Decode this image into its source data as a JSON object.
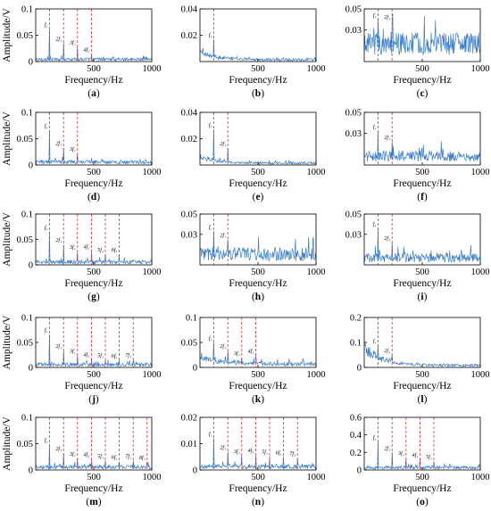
{
  "chart_data": [
    {
      "id": "a",
      "type": "line",
      "caption": "a",
      "xlabel": "Frequency/Hz",
      "ylabel": "Amplitude/V",
      "xlim": [
        0,
        1000
      ],
      "ylim": [
        0,
        0.1
      ],
      "yticks": [
        0,
        0.05,
        0.1
      ],
      "ytick_labels": [
        "0",
        "0.05",
        "0.1"
      ],
      "xticks": [
        500,
        1000
      ],
      "xtick_labels": [
        "500",
        "1000"
      ],
      "line_color": "#3a7dc9",
      "marker_color": "#e0303a",
      "markers": [
        120,
        240,
        360,
        480
      ],
      "marker_labels": [
        "f₁",
        "2f₁",
        "3f₁",
        "4f₁"
      ],
      "noise": 0.006,
      "peak_values": [
        0.062,
        0.035,
        0.028,
        0.014
      ],
      "trend": [
        0,
        0
      ]
    },
    {
      "id": "b",
      "type": "line",
      "caption": "b",
      "xlabel": "Frequency/Hz",
      "ylabel": "",
      "xlim": [
        0,
        1000
      ],
      "ylim": [
        0,
        0.04
      ],
      "yticks": [
        0.02,
        0.04
      ],
      "ytick_labels": [
        "0.02",
        "0.04"
      ],
      "xticks": [
        500,
        1000
      ],
      "xtick_labels": [
        "500",
        "1000"
      ],
      "line_color": "#3a7dc9",
      "marker_color": "#e0303a",
      "markers": [
        120
      ],
      "marker_labels": [
        "f₁"
      ],
      "noise": 0.002,
      "peak_values": [
        0.017
      ],
      "trend": [
        0.007,
        120
      ]
    },
    {
      "id": "c",
      "type": "line",
      "caption": "c",
      "xlabel": "Frequency/Hz",
      "ylabel": "",
      "xlim": [
        0,
        1000
      ],
      "ylim": [
        0,
        0.05
      ],
      "yticks": [
        0.03,
        0.05
      ],
      "ytick_labels": [
        "0.03",
        "0.05"
      ],
      "xticks": [
        500,
        1000
      ],
      "xtick_labels": [
        "500",
        "1000"
      ],
      "line_color": "#3a7dc9",
      "marker_color": "#e0303a",
      "markers": [
        120,
        240
      ],
      "marker_labels": [
        "f₁",
        "2f₁"
      ],
      "noise": 0.024,
      "peak_values": [
        0.04,
        0.038
      ],
      "trend": [
        0,
        0
      ]
    },
    {
      "id": "d",
      "type": "line",
      "caption": "d",
      "xlabel": "Frequency/Hz",
      "ylabel": "Amplitude/V",
      "xlim": [
        0,
        1000
      ],
      "ylim": [
        0,
        0.1
      ],
      "yticks": [
        0,
        0.05,
        0.1
      ],
      "ytick_labels": [
        "0",
        "0.05",
        "0.1"
      ],
      "xticks": [
        500,
        1000
      ],
      "xtick_labels": [
        "500",
        "1000"
      ],
      "line_color": "#3a7dc9",
      "marker_color": "#e0303a",
      "markers": [
        120,
        240,
        360
      ],
      "marker_labels": [
        "f₁",
        "2f₁",
        "3f₁"
      ],
      "noise": 0.008,
      "peak_values": [
        0.066,
        0.033,
        0.022
      ],
      "trend": [
        0,
        0
      ]
    },
    {
      "id": "e",
      "type": "line",
      "caption": "e",
      "xlabel": "Frequency/Hz",
      "ylabel": "",
      "xlim": [
        0,
        1000
      ],
      "ylim": [
        0,
        0.04
      ],
      "yticks": [
        0.02,
        0.04
      ],
      "ytick_labels": [
        "0.02",
        "0.04"
      ],
      "xticks": [
        500,
        1000
      ],
      "xtick_labels": [
        "500",
        "1000"
      ],
      "line_color": "#3a7dc9",
      "marker_color": "#e0303a",
      "markers": [
        120,
        240
      ],
      "marker_labels": [
        "f₁",
        "2f₁"
      ],
      "noise": 0.002,
      "peak_values": [
        0.027,
        0.013
      ],
      "trend": [
        0.005,
        150
      ]
    },
    {
      "id": "f",
      "type": "line",
      "caption": "f",
      "xlabel": "Frequency/Hz",
      "ylabel": "",
      "xlim": [
        0,
        1000
      ],
      "ylim": [
        0,
        0.05
      ],
      "yticks": [
        0.03,
        0.05
      ],
      "ytick_labels": [
        "0.03",
        "0.05"
      ],
      "xticks": [
        500,
        1000
      ],
      "xtick_labels": [
        "500",
        "1000"
      ],
      "line_color": "#3a7dc9",
      "marker_color": "#e0303a",
      "markers": [
        120,
        240
      ],
      "marker_labels": [
        "f₁",
        "2f₁"
      ],
      "noise": 0.012,
      "peak_values": [
        0.032,
        0.022
      ],
      "trend": [
        0,
        0
      ]
    },
    {
      "id": "g",
      "type": "line",
      "caption": "g",
      "xlabel": "Frequency/Hz",
      "ylabel": "Amplitude/V",
      "xlim": [
        0,
        1000
      ],
      "ylim": [
        0,
        0.1
      ],
      "yticks": [
        0,
        0.05,
        0.1
      ],
      "ytick_labels": [
        "0",
        "0.05",
        "0.1"
      ],
      "xticks": [
        500,
        1000
      ],
      "xtick_labels": [
        "500",
        "1000"
      ],
      "line_color": "#3a7dc9",
      "marker_color": "#e0303a",
      "markers": [
        120,
        240,
        360,
        480,
        600,
        720
      ],
      "marker_labels": [
        "f₁",
        "2f₁",
        "3f₁",
        "4f₁",
        "5f₁",
        "6f₁"
      ],
      "noise": 0.008,
      "peak_values": [
        0.065,
        0.04,
        0.026,
        0.027,
        0.021,
        0.021
      ],
      "trend": [
        0,
        0
      ]
    },
    {
      "id": "h",
      "type": "line",
      "caption": "h",
      "xlabel": "Frequency/Hz",
      "ylabel": "",
      "xlim": [
        0,
        1000
      ],
      "ylim": [
        0,
        0.05
      ],
      "yticks": [
        0.03,
        0.05
      ],
      "ytick_labels": [
        "0.03",
        "0.05"
      ],
      "xticks": [
        500,
        1000
      ],
      "xtick_labels": [
        "500",
        "1000"
      ],
      "line_color": "#3a7dc9",
      "marker_color": "#e0303a",
      "markers": [
        120,
        240
      ],
      "marker_labels": [
        "f₁",
        "2f₁"
      ],
      "noise": 0.015,
      "peak_values": [
        0.033,
        0.025
      ],
      "trend": [
        0,
        0
      ]
    },
    {
      "id": "i",
      "type": "line",
      "caption": "i",
      "xlabel": "Frequency/Hz",
      "ylabel": "",
      "xlim": [
        0,
        1000
      ],
      "ylim": [
        0,
        0.05
      ],
      "yticks": [
        0.03,
        0.05
      ],
      "ytick_labels": [
        "0.03",
        "0.05"
      ],
      "xticks": [
        500,
        1000
      ],
      "xtick_labels": [
        "500",
        "1000"
      ],
      "line_color": "#3a7dc9",
      "marker_color": "#e0303a",
      "markers": [
        120,
        240
      ],
      "marker_labels": [
        "f₁",
        "2f₁"
      ],
      "noise": 0.01,
      "peak_values": [
        0.036,
        0.022
      ],
      "trend": [
        0,
        0
      ]
    },
    {
      "id": "j",
      "type": "line",
      "caption": "j",
      "xlabel": "Frequency/Hz",
      "ylabel": "Amplitude/V",
      "xlim": [
        0,
        1000
      ],
      "ylim": [
        0,
        0.1
      ],
      "yticks": [
        0,
        0.05,
        0.1
      ],
      "ytick_labels": [
        "0",
        "0.05",
        "0.1"
      ],
      "xticks": [
        500,
        1000
      ],
      "xtick_labels": [
        "500",
        "1000"
      ],
      "line_color": "#3a7dc9",
      "marker_color": "#e0303a",
      "markers": [
        120,
        240,
        360,
        480,
        600,
        720,
        840
      ],
      "marker_labels": [
        "f₁",
        "2f₁",
        "3f₁",
        "4f₁",
        "5f₁",
        "6f₁",
        "7f₁"
      ],
      "noise": 0.008,
      "peak_values": [
        0.066,
        0.034,
        0.024,
        0.017,
        0.015,
        0.014,
        0.016
      ],
      "trend": [
        0,
        0
      ]
    },
    {
      "id": "k",
      "type": "line",
      "caption": "k",
      "xlabel": "Frequency/Hz",
      "ylabel": "",
      "xlim": [
        0,
        1000
      ],
      "ylim": [
        0,
        0.1
      ],
      "yticks": [
        0,
        0.05,
        0.1
      ],
      "ytick_labels": [
        "0",
        "0.05",
        "0.1"
      ],
      "xticks": [
        500,
        1000
      ],
      "xtick_labels": [
        "500",
        "1000"
      ],
      "line_color": "#3a7dc9",
      "marker_color": "#e0303a",
      "markers": [
        120,
        240,
        360,
        480
      ],
      "marker_labels": [
        "f₁",
        "2f₁",
        "3f₁",
        "4f₁"
      ],
      "noise": 0.009,
      "peak_values": [
        0.05,
        0.034,
        0.02,
        0.024
      ],
      "trend": [
        0.012,
        250
      ]
    },
    {
      "id": "l",
      "type": "line",
      "caption": "l",
      "xlabel": "Frequency/Hz",
      "ylabel": "",
      "xlim": [
        0,
        1000
      ],
      "ylim": [
        0,
        0.2
      ],
      "yticks": [
        0,
        0.1,
        0.2
      ],
      "ytick_labels": [
        "0",
        "0.1",
        "0.2"
      ],
      "xticks": [
        500,
        1000
      ],
      "xtick_labels": [
        "500",
        "1000"
      ],
      "line_color": "#3a7dc9",
      "marker_color": "#e0303a",
      "markers": [
        120,
        240
      ],
      "marker_labels": [
        "f₁",
        "2f₁"
      ],
      "noise": 0.012,
      "peak_values": [
        0.09,
        0.05
      ],
      "trend": [
        0.07,
        140
      ]
    },
    {
      "id": "m",
      "type": "line",
      "caption": "m",
      "xlabel": "Frequency/Hz",
      "ylabel": "Amplitude/V",
      "xlim": [
        0,
        1000
      ],
      "ylim": [
        0,
        0.1
      ],
      "yticks": [
        0,
        0.05,
        0.1
      ],
      "ytick_labels": [
        "0",
        "0.05",
        "0.1"
      ],
      "xticks": [
        500,
        1000
      ],
      "xtick_labels": [
        "500",
        "1000"
      ],
      "line_color": "#3a7dc9",
      "marker_color": "#e0303a",
      "markers": [
        120,
        240,
        360,
        480,
        600,
        720,
        840,
        960
      ],
      "marker_labels": [
        "f₁",
        "2f₁",
        "3f₁",
        "4f₁",
        "5f₁",
        "6f₁",
        "7f₁",
        "8f₁"
      ],
      "noise": 0.008,
      "peak_values": [
        0.048,
        0.032,
        0.022,
        0.021,
        0.018,
        0.016,
        0.018,
        0.015
      ],
      "trend": [
        0,
        0
      ]
    },
    {
      "id": "n",
      "type": "line",
      "caption": "n",
      "xlabel": "Frequency/Hz",
      "ylabel": "",
      "xlim": [
        0,
        1000
      ],
      "ylim": [
        0,
        0.02
      ],
      "yticks": [
        0,
        0.01,
        0.02
      ],
      "ytick_labels": [
        "0",
        "0.01",
        "0.02"
      ],
      "xticks": [
        500,
        1000
      ],
      "xtick_labels": [
        "500",
        "1000"
      ],
      "line_color": "#3a7dc9",
      "marker_color": "#e0303a",
      "markers": [
        120,
        240,
        360,
        480,
        600,
        720,
        840
      ],
      "marker_labels": [
        "f₁",
        "2f₁",
        "3f₁",
        "4f₁",
        "5f₁",
        "6f₁",
        "7f₁"
      ],
      "noise": 0.0018,
      "peak_values": [
        0.012,
        0.007,
        0.0055,
        0.0058,
        0.0052,
        0.005,
        0.0045
      ],
      "trend": [
        0,
        0
      ]
    },
    {
      "id": "o",
      "type": "line",
      "caption": "o",
      "xlabel": "Frequency/Hz",
      "ylabel": "",
      "xlim": [
        0,
        1000
      ],
      "ylim": [
        0,
        0.6
      ],
      "yticks": [
        0,
        0.2,
        0.4,
        0.6
      ],
      "ytick_labels": [
        "0",
        "0.2",
        "0.4",
        "0.6"
      ],
      "xticks": [
        500,
        1000
      ],
      "xtick_labels": [
        "500",
        "1000"
      ],
      "line_color": "#3a7dc9",
      "marker_color": "#e0303a",
      "markers": [
        120,
        240,
        360,
        480,
        600
      ],
      "marker_labels": [
        "f₁",
        "2f₁",
        "3f₁",
        "4f₁",
        "5f₁"
      ],
      "noise": 0.04,
      "peak_values": [
        0.32,
        0.2,
        0.14,
        0.12,
        0.1
      ],
      "trend": [
        0,
        0
      ]
    }
  ]
}
